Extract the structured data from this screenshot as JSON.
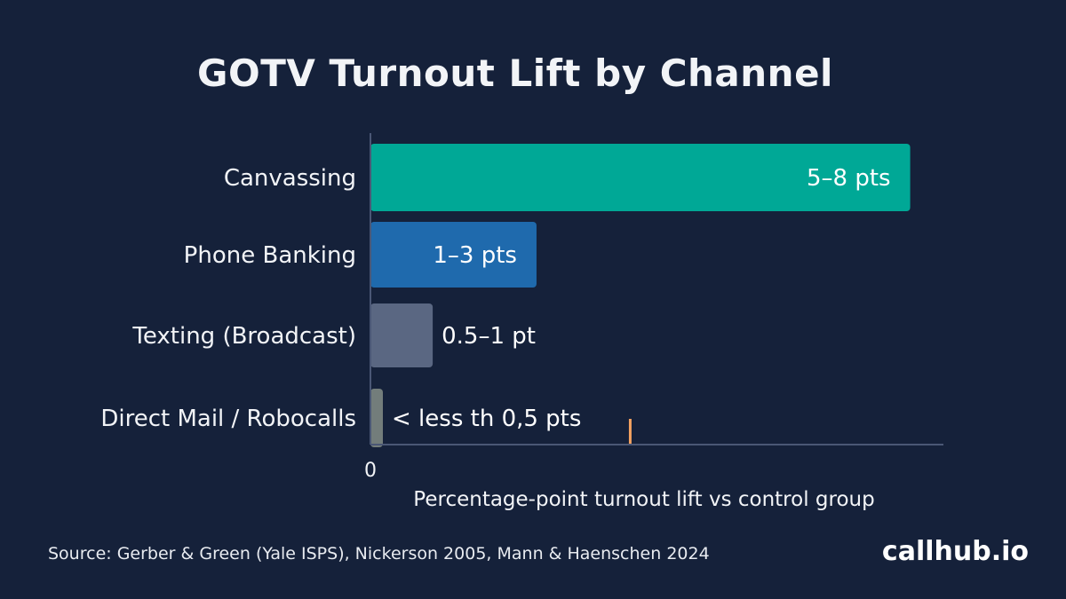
{
  "chart_data": {
    "type": "bar",
    "orientation": "horizontal",
    "title": "GOTV Turnout Lift by Channel",
    "xlabel": "Percentage-point turnout lift vs control group",
    "ylabel": "",
    "categories": [
      "Canvassing",
      "Phone Banking",
      "Texting (Broadcast)",
      "Direct Mail / Robocalls"
    ],
    "values": [
      6.5,
      2.0,
      0.75,
      0.1
    ],
    "value_labels": [
      "5–8 pts",
      "1–3 pts",
      "0.5–1 pt",
      "< less th 0,5 pts"
    ],
    "bar_colors": [
      "#00a896",
      "#1f6aad",
      "#5a6782",
      "#737d7b"
    ],
    "xlim": [
      0,
      6.9
    ],
    "x_ticks": [
      "0"
    ],
    "marker": {
      "value": 3.0,
      "color": "#f4a261"
    },
    "grid": false,
    "legend": "none"
  },
  "footer": {
    "source": "Source: Gerber & Green (Yale ISPS), Nickerson 2005, Mann & Haenschen 2024",
    "brand": "callhub.io"
  },
  "colors": {
    "background": "#15213a",
    "axis": "#4a5775",
    "text": "#f2f4f7"
  }
}
